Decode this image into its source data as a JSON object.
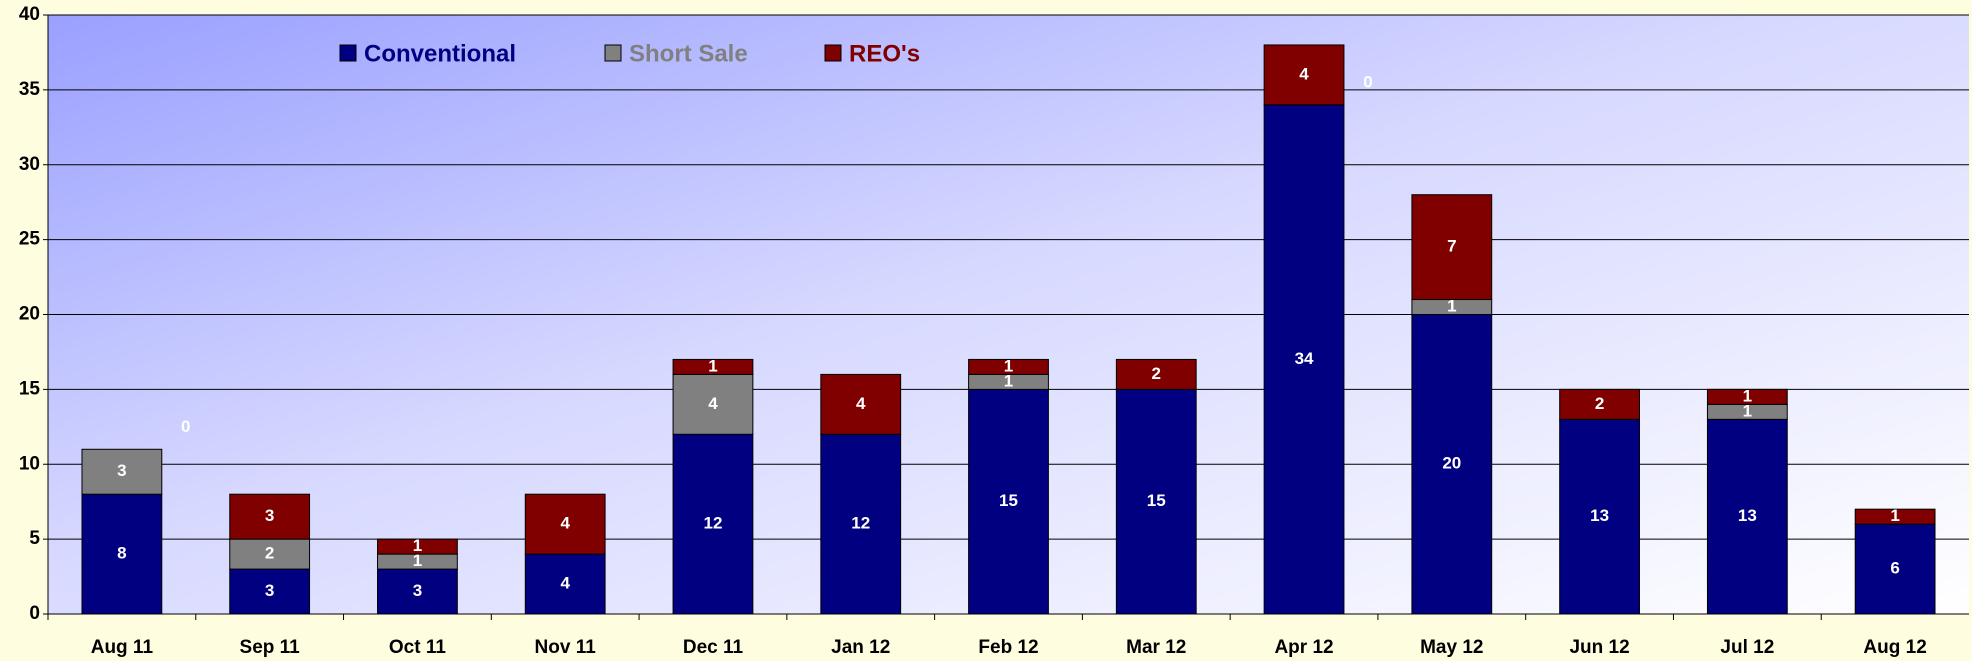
{
  "chart_data": {
    "type": "stacked_bar",
    "categories": [
      "Aug 11",
      "Sep 11",
      "Oct 11",
      "Nov 11",
      "Dec 11",
      "Jan 12",
      "Feb 12",
      "Mar 12",
      "Apr 12",
      "May 12",
      "Jun 12",
      "Jul 12",
      "Aug 12"
    ],
    "series": [
      {
        "name": "Conventional",
        "color": "#000080",
        "values": [
          8,
          3,
          3,
          4,
          12,
          12,
          15,
          15,
          34,
          20,
          13,
          13,
          6
        ],
        "value_labels": [
          "8",
          "3",
          "3",
          "4",
          "12",
          "12",
          "15",
          "15",
          "34",
          "20",
          "13",
          "13",
          "6"
        ]
      },
      {
        "name": "Short Sale",
        "color": "#808080",
        "values": [
          3,
          2,
          1,
          0,
          4,
          0,
          1,
          0,
          0,
          1,
          0,
          1,
          0
        ],
        "value_labels": [
          "3",
          "2",
          "1",
          null,
          "4",
          null,
          "1",
          null,
          "0",
          "1",
          null,
          "1",
          null
        ]
      },
      {
        "name": "REO's",
        "color": "#800000",
        "values": [
          0,
          3,
          1,
          4,
          1,
          4,
          1,
          2,
          4,
          7,
          2,
          1,
          1
        ],
        "value_labels": [
          "0",
          "3",
          "1",
          "4",
          "1",
          "4",
          "1",
          "2",
          "4",
          "7",
          "2",
          "1",
          "1"
        ]
      }
    ],
    "ylim": [
      0,
      40
    ],
    "yticks": [
      0,
      5,
      10,
      15,
      20,
      25,
      30,
      35,
      40
    ],
    "grid": true,
    "legend": "top"
  }
}
